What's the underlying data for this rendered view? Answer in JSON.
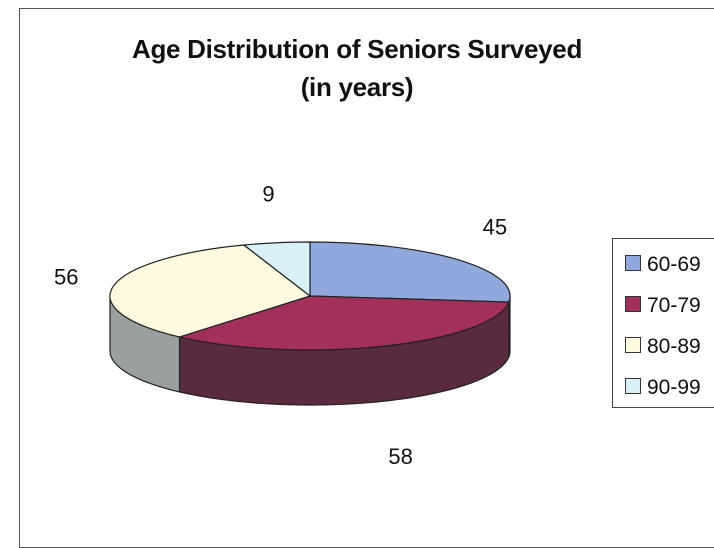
{
  "chart_data": {
    "type": "pie",
    "title": "Age Distribution of Seniors Surveyed",
    "subtitle": "(in years)",
    "categories": [
      "60-69",
      "70-79",
      "80-89",
      "90-99"
    ],
    "values": [
      45,
      58,
      56,
      9
    ],
    "colors": [
      "#90a8dc",
      "#a3305a",
      "#fffae0",
      "#d8f0f8"
    ],
    "side_colors": [
      "#4e5e7e",
      "#5a2a40",
      "#9aa0a0",
      "#88a0a8"
    ],
    "legend_position": "right"
  }
}
